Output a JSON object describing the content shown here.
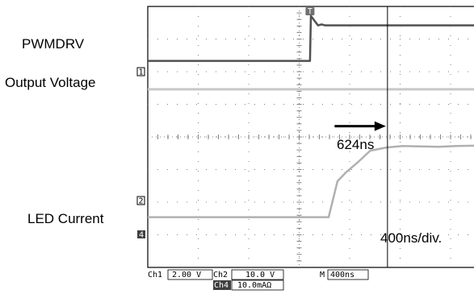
{
  "chart_data": {
    "type": "line",
    "title": "",
    "xlabel": "",
    "ylabel": "",
    "x_unit": "ns",
    "y_unit": "div",
    "xlim": [
      -2080,
      1600
    ],
    "ylim": [
      -4,
      4
    ],
    "series": [
      {
        "name": "PWMDRV",
        "color": "#505050",
        "x": [
          -2080,
          -250,
          -240,
          -160,
          -120,
          -80,
          1600
        ],
        "y": [
          2.33,
          2.33,
          3.71,
          3.42,
          3.45,
          3.42,
          3.42
        ]
      },
      {
        "name": "Output Voltage",
        "color": "#c8c8c8",
        "x": [
          -2080,
          1600
        ],
        "y": [
          1.46,
          1.46
        ]
      },
      {
        "name": "LED Current",
        "color": "#b0b0b0",
        "x": [
          -2080,
          -40,
          60,
          150,
          300,
          430,
          620,
          800,
          1000,
          1200,
          1400,
          1600
        ],
        "y": [
          -2.46,
          -2.46,
          -1.36,
          -1.1,
          -0.75,
          -0.42,
          -0.32,
          -0.28,
          -0.29,
          -0.3,
          -0.28,
          -0.27
        ]
      }
    ],
    "labels": {
      "pwm": "PWMDRV",
      "vout": "Output Voltage",
      "led": "LED Current",
      "delay": "624ns",
      "timebase": "400ns/div."
    },
    "markers": {
      "trigger_symbol": "T",
      "ch1": "1",
      "ch2": "2",
      "ch4": "4"
    },
    "cursor_x": 624,
    "arrow": {
      "x_from": 0,
      "x_to": 624,
      "y": 0.33
    },
    "readout": {
      "ch1_name": "Ch1",
      "ch1_scale": "2.00 V",
      "ch2_name": "Ch2",
      "ch2_scale": "10.0 V",
      "m_name": "M",
      "m_scale": "400ns",
      "ch4_name": "Ch4",
      "ch4_scale": "10.0mAΩ"
    },
    "colors": {
      "grid_border": "#000000",
      "grid_dots": "#808080",
      "pwm_trace": "#505050",
      "vout_trace": "#c8c8c8",
      "led_trace": "#b0b0b0"
    }
  }
}
